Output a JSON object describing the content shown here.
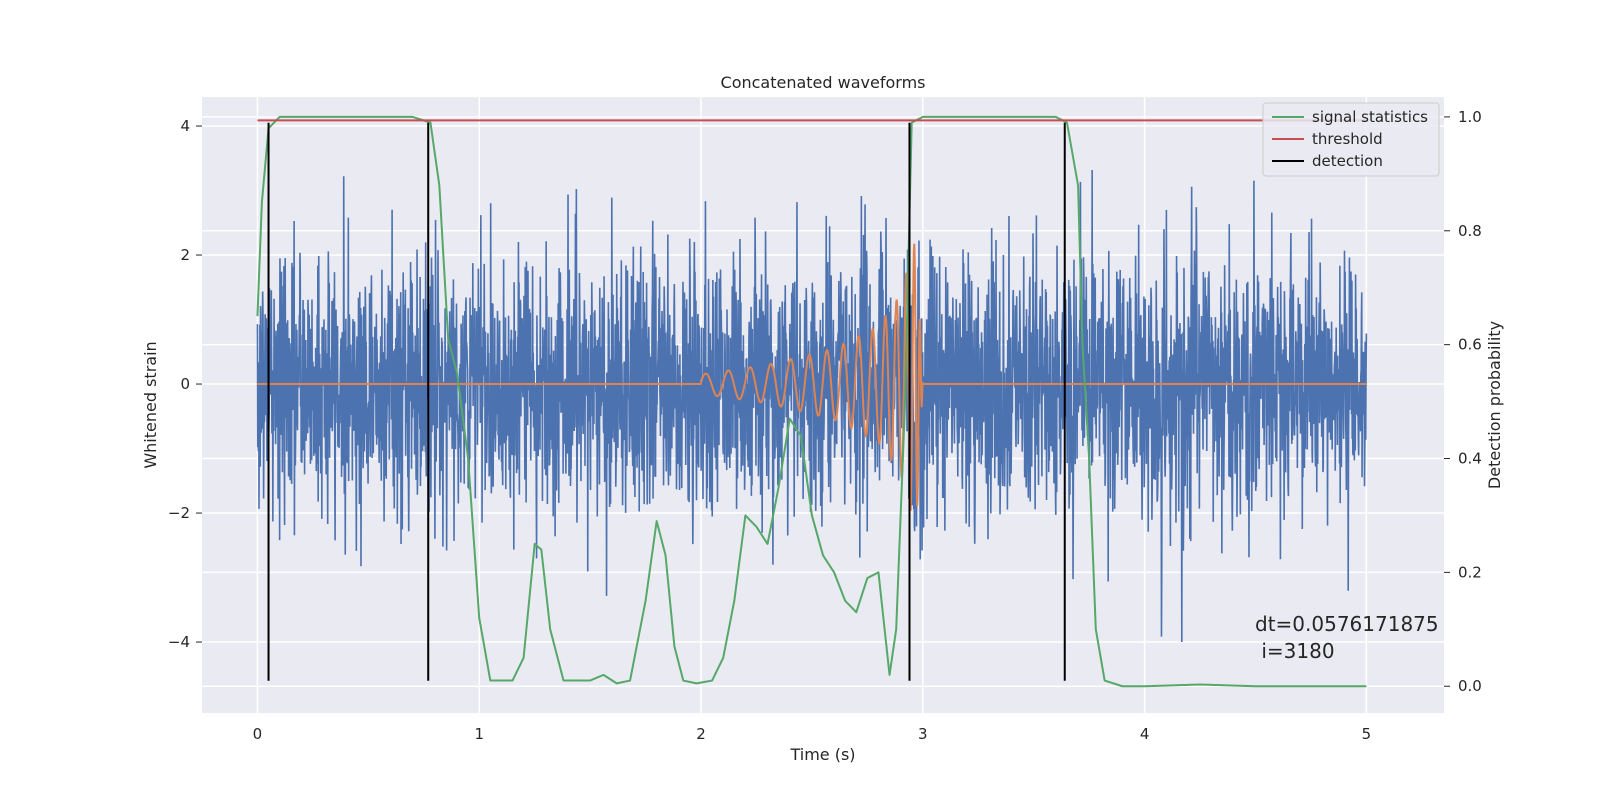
{
  "chart_data": {
    "type": "line",
    "title": "Concatenated waveforms",
    "xlabel": "Time (s)",
    "ylabel_left": "Whitened strain",
    "ylabel_right": "Detection probability",
    "xlim": [
      -0.25,
      5.35
    ],
    "ylim_left": [
      -5.1,
      4.45
    ],
    "ylim_right": [
      -0.047,
      1.035
    ],
    "xticks": [
      0,
      1,
      2,
      3,
      4,
      5
    ],
    "yticks_left": [
      -4,
      -2,
      0,
      2,
      4
    ],
    "yticks_right": [
      0.0,
      0.2,
      0.4,
      0.6,
      0.8,
      1.0
    ],
    "xtick_labels": [
      "0",
      "1",
      "2",
      "3",
      "4",
      "5"
    ],
    "ytick_labels_left": [
      "−4",
      "−2",
      "0",
      "2",
      "4"
    ],
    "ytick_labels_right": [
      "0.0",
      "0.2",
      "0.4",
      "0.6",
      "0.8",
      "1.0"
    ],
    "grid": true,
    "legend_position": "top-right",
    "series": [
      {
        "name": "",
        "axis": "left",
        "color": "#4c72b0",
        "kind": "noise",
        "x_range": [
          0,
          5
        ],
        "std": 1.0,
        "peak": 4.0
      },
      {
        "name": "",
        "axis": "left",
        "color": "#dd8452",
        "kind": "chirp",
        "x": [
          0,
          2.0,
          2.3,
          2.6,
          2.8,
          2.9,
          2.97,
          3.0,
          5
        ],
        "amplitude": [
          0,
          0.15,
          0.3,
          0.55,
          0.9,
          1.4,
          2.3,
          0,
          0
        ]
      },
      {
        "name": "signal statistics",
        "axis": "right",
        "color": "#55a868",
        "x": [
          0.0,
          0.02,
          0.05,
          0.1,
          0.7,
          0.78,
          0.82,
          0.86,
          0.9,
          0.95,
          1.0,
          1.05,
          1.1,
          1.15,
          1.2,
          1.25,
          1.28,
          1.32,
          1.38,
          1.44,
          1.5,
          1.56,
          1.62,
          1.68,
          1.75,
          1.8,
          1.84,
          1.88,
          1.92,
          1.98,
          2.05,
          2.1,
          2.15,
          2.2,
          2.25,
          2.3,
          2.35,
          2.4,
          2.45,
          2.5,
          2.55,
          2.6,
          2.65,
          2.7,
          2.75,
          2.8,
          2.85,
          2.88,
          2.92,
          2.95,
          3.0,
          3.5,
          3.6,
          3.65,
          3.7,
          3.72,
          3.75,
          3.78,
          3.82,
          3.9,
          4.0,
          4.25,
          4.5,
          5.0
        ],
        "values": [
          0.65,
          0.85,
          0.98,
          1.0,
          1.0,
          0.99,
          0.88,
          0.61,
          0.55,
          0.4,
          0.12,
          0.01,
          0.01,
          0.01,
          0.05,
          0.25,
          0.24,
          0.1,
          0.01,
          0.01,
          0.01,
          0.02,
          0.005,
          0.01,
          0.15,
          0.29,
          0.23,
          0.07,
          0.01,
          0.005,
          0.01,
          0.05,
          0.15,
          0.3,
          0.28,
          0.25,
          0.35,
          0.47,
          0.44,
          0.3,
          0.23,
          0.2,
          0.15,
          0.13,
          0.19,
          0.2,
          0.02,
          0.1,
          0.5,
          0.99,
          1.0,
          1.0,
          1.0,
          0.99,
          0.88,
          0.6,
          0.4,
          0.1,
          0.01,
          0.0,
          0.0,
          0.003,
          0.0,
          0.0
        ]
      },
      {
        "name": "threshold",
        "axis": "right",
        "color": "#c44e52",
        "x": [
          0,
          5
        ],
        "values": [
          0.994,
          0.994
        ]
      },
      {
        "name": "detection",
        "axis": "left",
        "color": "#000000",
        "kind": "vlines",
        "x": [
          0.05,
          0.77,
          2.94,
          3.64
        ],
        "ymin": -4.6,
        "ymax": 4.05
      }
    ],
    "annotation": {
      "line1": "dt=0.0576171875",
      "line2": " i=3180"
    }
  }
}
